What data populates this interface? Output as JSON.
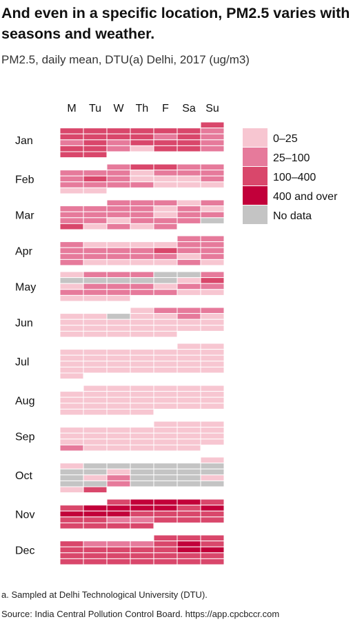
{
  "title": "And even in a specific location, PM2.5 varies with seasons and weather.",
  "subtitle": "PM2.5, daily mean, DTU(a) Delhi, 2017 (ug/m3)",
  "footnotes": [
    "a. Sampled at Delhi Technological University (DTU).",
    "Source: India Central Pollution Control Board. https://app.cpcbccr.com"
  ],
  "colors": {
    "c0": "#f7c6d1",
    "c1": "#e67a9b",
    "c2": "#d9476b",
    "c3": "#c2003a",
    "nd": "#c4c4c4"
  },
  "chart_data": {
    "type": "heatmap",
    "year": 2017,
    "weekdays": [
      "M",
      "Tu",
      "W",
      "Th",
      "F",
      "Sa",
      "Su"
    ],
    "months": [
      "Jan",
      "Feb",
      "Mar",
      "Apr",
      "May",
      "Jun",
      "Jul",
      "Aug",
      "Sep",
      "Oct",
      "Nov",
      "Dec"
    ],
    "legend": {
      "placement": "top-right",
      "items": [
        {
          "key": "c0",
          "label": "0–25"
        },
        {
          "key": "c1",
          "label": "25–100"
        },
        {
          "key": "c2",
          "label": "100–400"
        },
        {
          "key": "c3",
          "label": "400 and over"
        },
        {
          "key": "nd",
          "label": "No data"
        }
      ]
    },
    "daily_category": [
      [
        "c2",
        "c2",
        "c2",
        "c2",
        "c2",
        "c2",
        "c2",
        "c1",
        "c2",
        "c2",
        "c2",
        "c2",
        "c1",
        "c2",
        "c1",
        "c1",
        "c2",
        "c1",
        "c2",
        "c2",
        "c2",
        "c1",
        "c2",
        "c2",
        "c1",
        "c0",
        "c2",
        "c2",
        "c1",
        "c2",
        "c2"
      ],
      [
        "c1",
        "c2",
        "c2",
        "c1",
        "c1",
        "c1",
        "c1",
        "c1",
        "c0",
        "c1",
        "c1",
        "c1",
        "c1",
        "c2",
        "c1",
        "c0",
        "c0",
        "c0",
        "c1",
        "c1",
        "c1",
        "c1",
        "c1",
        "c0",
        "c0",
        "c0",
        "c0",
        "c0"
      ],
      [
        "c1",
        "c1",
        "c1",
        "c0",
        "c1",
        "c1",
        "c1",
        "c1",
        "c1",
        "c0",
        "c1",
        "c0",
        "c1",
        "c1",
        "c1",
        "c1",
        "c0",
        "c1",
        "c1",
        "c1",
        "c1",
        "c0",
        "c1",
        "c1",
        "c1",
        "nd",
        "c2",
        "c0",
        "c1",
        "c0",
        "c1"
      ],
      [
        "c1",
        "c1",
        "c1",
        "c0",
        "c0",
        "c0",
        "c0",
        "c1",
        "c1",
        "c1",
        "c1",
        "c1",
        "c1",
        "c2",
        "c1",
        "c1",
        "c1",
        "c1",
        "c1",
        "c1",
        "c1",
        "c0",
        "c1",
        "c1",
        "c0",
        "c0",
        "c0",
        "c0",
        "c1",
        "c0"
      ],
      [
        "c0",
        "c1",
        "c1",
        "c1",
        "nd",
        "nd",
        "c1",
        "nd",
        "nd",
        "nd",
        "nd",
        "nd",
        "c0",
        "c2",
        "c0",
        "c1",
        "c1",
        "c1",
        "c0",
        "c1",
        "c1",
        "c1",
        "c1",
        "c1",
        "c1",
        "c1",
        "c0",
        "c0",
        "c0",
        "c0",
        "c0"
      ],
      [
        "c0",
        "c1",
        "c1",
        "c1",
        "c0",
        "c0",
        "nd",
        "c0",
        "c0",
        "c1",
        "c0",
        "c0",
        "c0",
        "c0",
        "c0",
        "c0",
        "c0",
        "c0",
        "c0",
        "c0",
        "c0",
        "c0",
        "c0",
        "c0",
        "c0",
        "c0",
        "c0",
        "c0",
        "c0",
        "c0"
      ],
      [
        "c0",
        "c0",
        "c0",
        "c0",
        "c0",
        "c0",
        "c0",
        "c0",
        "c0",
        "c0",
        "c0",
        "c0",
        "c0",
        "c0",
        "c0",
        "c0",
        "c0",
        "c0",
        "c0",
        "c0",
        "c0",
        "c0",
        "c0",
        "c0",
        "c0",
        "c0",
        "c0",
        "c0",
        "c0",
        "c0",
        "c0"
      ],
      [
        "c0",
        "c0",
        "c0",
        "c0",
        "c0",
        "c0",
        "c0",
        "c0",
        "c0",
        "c0",
        "c0",
        "c0",
        "c0",
        "c0",
        "c0",
        "c0",
        "c0",
        "c0",
        "c0",
        "c0",
        "c0",
        "c0",
        "c0",
        "c0",
        "c0",
        "c0",
        "c0",
        "c0",
        "c0",
        "c0",
        "c0"
      ],
      [
        "c0",
        "c0",
        "c0",
        "c0",
        "c0",
        "c0",
        "c0",
        "c0",
        "c0",
        "c0",
        "c0",
        "c0",
        "c0",
        "c0",
        "c0",
        "c0",
        "c0",
        "c0",
        "c0",
        "c0",
        "c0",
        "c0",
        "c0",
        "c0",
        "c1",
        "c0",
        "c0",
        "c0",
        "c0",
        "c0"
      ],
      [
        "c0",
        "c0",
        "nd",
        "nd",
        "nd",
        "nd",
        "nd",
        "nd",
        "nd",
        "nd",
        "c0",
        "nd",
        "nd",
        "nd",
        "nd",
        "nd",
        "c0",
        "c1",
        "nd",
        "nd",
        "nd",
        "c0",
        "nd",
        "nd",
        "c1",
        "nd",
        "nd",
        "nd",
        "nd",
        "c0",
        "c2"
      ],
      [
        "c2",
        "c3",
        "c3",
        "c3",
        "c2",
        "c2",
        "c3",
        "c3",
        "c3",
        "c3",
        "c2",
        "c3",
        "c3",
        "c3",
        "c3",
        "c2",
        "c2",
        "c2",
        "c2",
        "c2",
        "c2",
        "c1",
        "c1",
        "c2",
        "c2",
        "c2",
        "c2",
        "c2",
        "c2",
        "c2"
      ],
      [
        "c2",
        "c2",
        "c2",
        "c2",
        "c1",
        "c1",
        "c1",
        "c2",
        "c3",
        "c2",
        "c2",
        "c2",
        "c2",
        "c2",
        "c2",
        "c3",
        "c3",
        "c2",
        "c2",
        "c2",
        "c2",
        "c2",
        "c2",
        "c2",
        "c2",
        "c2",
        "c2",
        "c2",
        "c2",
        "c2",
        "c2"
      ]
    ]
  }
}
